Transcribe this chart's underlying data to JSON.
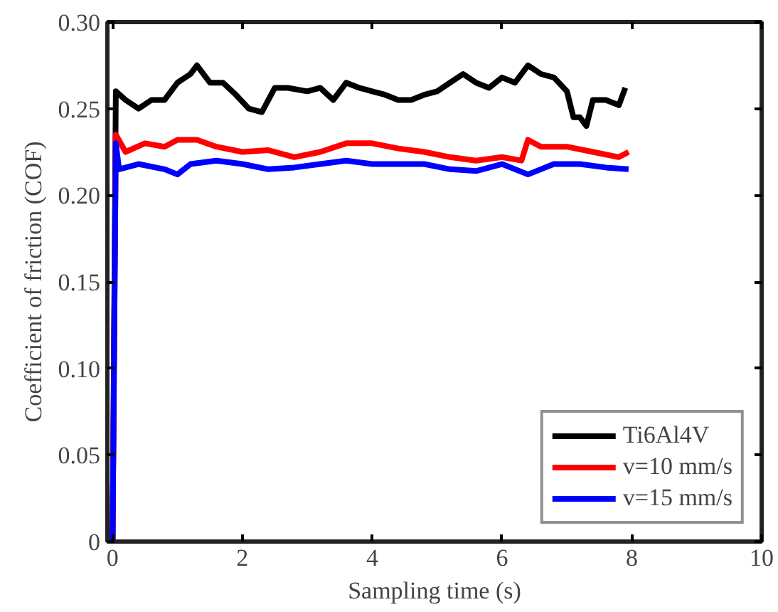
{
  "chart_data": {
    "type": "line",
    "xlabel": "Sampling time (s)",
    "ylabel": "Coefficient of friction (COF)",
    "xlim": [
      -0.08,
      10
    ],
    "xticks": [
      0,
      2,
      4,
      6,
      8,
      10
    ],
    "ylim": [
      0,
      0.3
    ],
    "yticks": [
      0,
      {
        "value": 0.05,
        "label": "0.05"
      },
      {
        "value": 0.1,
        "label": "0.10"
      },
      {
        "value": 0.15,
        "label": "0.15"
      },
      {
        "value": 0.2,
        "label": "0.20"
      },
      {
        "value": 0.25,
        "label": "0.25"
      },
      {
        "value": 0.3,
        "label": "0.30"
      }
    ],
    "grid": false,
    "legend": "bottom right",
    "line_style": "solid",
    "marker": "none",
    "series": [
      {
        "name": "Ti6Al4V",
        "color": "#000000",
        "x": [
          0,
          0.05,
          0.2,
          0.4,
          0.6,
          0.8,
          1.0,
          1.2,
          1.3,
          1.5,
          1.7,
          1.9,
          2.1,
          2.3,
          2.5,
          2.7,
          3.0,
          3.2,
          3.4,
          3.6,
          3.8,
          4.0,
          4.2,
          4.4,
          4.6,
          4.8,
          5.0,
          5.2,
          5.4,
          5.6,
          5.8,
          6.0,
          6.2,
          6.4,
          6.6,
          6.8,
          7.0,
          7.1,
          7.2,
          7.3,
          7.4,
          7.6,
          7.8,
          7.9
        ],
        "values": [
          0,
          0.26,
          0.255,
          0.25,
          0.255,
          0.255,
          0.265,
          0.27,
          0.275,
          0.265,
          0.265,
          0.258,
          0.25,
          0.248,
          0.262,
          0.262,
          0.26,
          0.262,
          0.255,
          0.265,
          0.262,
          0.26,
          0.258,
          0.255,
          0.255,
          0.258,
          0.26,
          0.265,
          0.27,
          0.265,
          0.262,
          0.268,
          0.265,
          0.275,
          0.27,
          0.268,
          0.26,
          0.245,
          0.245,
          0.24,
          0.255,
          0.255,
          0.252,
          0.262
        ]
      },
      {
        "name": "v=10 mm/s",
        "color": "#ff0000",
        "x": [
          0,
          0.05,
          0.2,
          0.5,
          0.8,
          1.0,
          1.3,
          1.6,
          2.0,
          2.4,
          2.8,
          3.2,
          3.6,
          4.0,
          4.4,
          4.8,
          5.2,
          5.6,
          6.0,
          6.3,
          6.4,
          6.6,
          7.0,
          7.4,
          7.8,
          7.95
        ],
        "values": [
          0,
          0.235,
          0.225,
          0.23,
          0.228,
          0.232,
          0.232,
          0.228,
          0.225,
          0.226,
          0.222,
          0.225,
          0.23,
          0.23,
          0.227,
          0.225,
          0.222,
          0.22,
          0.222,
          0.22,
          0.232,
          0.228,
          0.228,
          0.225,
          0.222,
          0.225
        ]
      },
      {
        "name": "v=15 mm/s",
        "color": "#0000ff",
        "x": [
          0,
          0.05,
          0.1,
          0.4,
          0.8,
          1.0,
          1.2,
          1.6,
          2.0,
          2.4,
          2.8,
          3.2,
          3.6,
          4.0,
          4.4,
          4.8,
          5.2,
          5.6,
          6.0,
          6.4,
          6.8,
          7.2,
          7.6,
          7.95
        ],
        "values": [
          0,
          0.23,
          0.215,
          0.218,
          0.215,
          0.212,
          0.218,
          0.22,
          0.218,
          0.215,
          0.216,
          0.218,
          0.22,
          0.218,
          0.218,
          0.218,
          0.215,
          0.214,
          0.218,
          0.212,
          0.218,
          0.218,
          0.216,
          0.215
        ]
      }
    ]
  }
}
